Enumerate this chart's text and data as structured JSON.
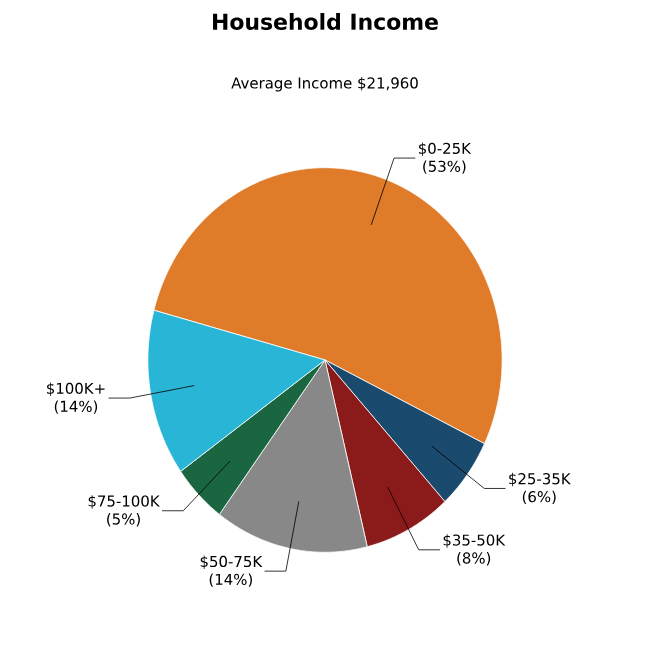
{
  "chart_data": {
    "type": "pie",
    "title": "Household Income",
    "subtitle": "Average Income  $21,960",
    "categories": [
      "$0-25K",
      "$25-35K",
      "$35-50K",
      "$50-75K",
      "$75-100K",
      "$100K+"
    ],
    "values": [
      53,
      6,
      8,
      14,
      5,
      14
    ],
    "value_labels": [
      "(53%)",
      "(6%)",
      "(8%)",
      "(14%)",
      "(5%)",
      "(14%)"
    ],
    "colors": [
      "#e07b2a",
      "#1a4a6e",
      "#8b1a1a",
      "#888888",
      "#1a6640",
      "#29b6d6"
    ]
  }
}
